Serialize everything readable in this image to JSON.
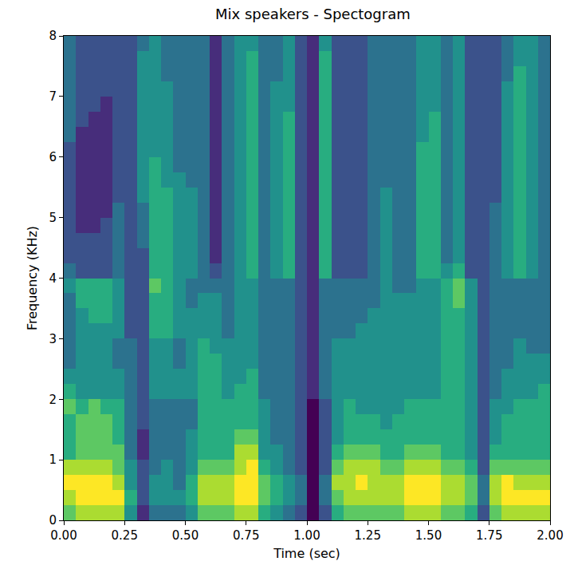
{
  "chart_data": {
    "type": "heatmap",
    "title": "Mix speakers - Spectogram",
    "x_label": "Time (sec)",
    "y_label": "Frequency (KHz)",
    "color": "Viridis",
    "grid": false,
    "xlim": [
      0,
      2
    ],
    "ylim": [
      0,
      8
    ],
    "xticks": [
      {
        "value": 0,
        "label": "0.00"
      },
      0.25,
      {
        "value": 0.5,
        "label": "0.50"
      },
      0.75,
      {
        "value": 1,
        "label": "1.00"
      },
      1.25,
      {
        "value": 1.5,
        "label": "1.50"
      },
      1.75,
      {
        "value": 2,
        "label": "2.00"
      }
    ],
    "yticks": [
      0,
      1,
      2,
      3,
      4,
      5,
      6,
      7,
      8
    ],
    "x": [
      0.025,
      0.075,
      0.125,
      0.175,
      0.225,
      0.275,
      0.325,
      0.375,
      0.425,
      0.475,
      0.525,
      0.575,
      0.625,
      0.675,
      0.725,
      0.775,
      0.825,
      0.875,
      0.925,
      0.975,
      1.025,
      1.075,
      1.125,
      1.175,
      1.225,
      1.275,
      1.325,
      1.375,
      1.425,
      1.475,
      1.525,
      1.575,
      1.625,
      1.675,
      1.725,
      1.775,
      1.825,
      1.875,
      1.925,
      1.975
    ],
    "y": [
      0.125,
      0.375,
      0.625,
      0.875,
      1.125,
      1.375,
      1.625,
      1.875,
      2.125,
      2.375,
      2.625,
      2.875,
      3.125,
      3.375,
      3.625,
      3.875,
      4.125,
      4.375,
      4.625,
      4.875,
      5.125,
      5.375,
      5.625,
      5.875,
      6.125,
      6.375,
      6.625,
      6.875,
      7.125,
      7.375,
      7.625,
      7.875
    ],
    "values": [
      [
        7,
        8,
        8,
        8,
        8,
        5,
        2,
        4,
        4,
        4,
        5,
        7,
        7,
        7,
        8,
        8,
        6,
        5,
        4,
        3,
        1,
        3,
        6,
        7,
        7,
        7,
        7,
        7,
        8,
        8,
        8,
        7,
        7,
        6,
        3,
        7,
        8,
        8,
        8,
        8
      ],
      [
        8,
        9,
        9,
        9,
        9,
        6,
        3,
        5,
        5,
        5,
        6,
        8,
        8,
        8,
        9,
        9,
        7,
        6,
        5,
        4,
        1,
        4,
        7,
        8,
        8,
        8,
        8,
        8,
        9,
        9,
        9,
        8,
        8,
        7,
        4,
        8,
        9,
        9,
        9,
        9
      ],
      [
        9,
        9,
        9,
        9,
        8,
        5,
        3,
        5,
        5,
        4,
        6,
        8,
        8,
        8,
        9,
        9,
        7,
        6,
        5,
        4,
        1,
        4,
        8,
        8,
        9,
        8,
        8,
        8,
        9,
        9,
        9,
        8,
        8,
        7,
        4,
        8,
        9,
        8,
        8,
        8
      ],
      [
        8,
        8,
        8,
        8,
        7,
        5,
        3,
        4,
        5,
        4,
        5,
        7,
        7,
        7,
        8,
        9,
        6,
        5,
        4,
        3,
        1,
        3,
        7,
        8,
        8,
        8,
        7,
        7,
        8,
        8,
        8,
        7,
        7,
        6,
        3,
        7,
        7,
        7,
        7,
        7
      ],
      [
        6,
        7,
        7,
        7,
        7,
        4,
        2,
        4,
        4,
        4,
        5,
        6,
        6,
        6,
        8,
        8,
        5,
        5,
        4,
        3,
        1,
        3,
        6,
        7,
        7,
        7,
        6,
        6,
        7,
        7,
        7,
        6,
        6,
        5,
        3,
        6,
        6,
        6,
        6,
        6
      ],
      [
        6,
        7,
        7,
        7,
        6,
        4,
        2,
        4,
        4,
        4,
        5,
        6,
        6,
        6,
        7,
        7,
        5,
        4,
        4,
        3,
        1,
        3,
        5,
        6,
        6,
        6,
        6,
        6,
        6,
        6,
        6,
        6,
        6,
        5,
        3,
        5,
        6,
        6,
        6,
        6
      ],
      [
        6,
        7,
        7,
        7,
        6,
        4,
        3,
        4,
        4,
        4,
        4,
        6,
        6,
        6,
        6,
        6,
        5,
        4,
        4,
        3,
        1,
        3,
        5,
        6,
        6,
        6,
        5,
        6,
        6,
        6,
        6,
        6,
        6,
        5,
        3,
        5,
        6,
        6,
        6,
        6
      ],
      [
        7,
        6,
        7,
        6,
        6,
        4,
        3,
        4,
        4,
        4,
        4,
        6,
        6,
        6,
        6,
        6,
        5,
        4,
        4,
        3,
        1,
        3,
        5,
        6,
        5,
        5,
        5,
        5,
        6,
        6,
        6,
        6,
        6,
        5,
        3,
        5,
        5,
        6,
        6,
        6
      ],
      [
        6,
        5,
        5,
        5,
        5,
        4,
        3,
        5,
        5,
        5,
        5,
        6,
        6,
        5,
        6,
        6,
        4,
        4,
        4,
        3,
        2,
        4,
        5,
        5,
        5,
        5,
        5,
        5,
        5,
        5,
        5,
        6,
        6,
        5,
        3,
        4,
        5,
        5,
        5,
        6
      ],
      [
        5,
        5,
        5,
        5,
        5,
        4,
        3,
        5,
        5,
        5,
        5,
        6,
        6,
        5,
        5,
        6,
        4,
        4,
        4,
        3,
        2,
        4,
        5,
        5,
        5,
        5,
        5,
        5,
        5,
        5,
        5,
        6,
        6,
        5,
        3,
        4,
        5,
        5,
        5,
        5
      ],
      [
        4,
        5,
        5,
        5,
        4,
        4,
        3,
        5,
        5,
        4,
        5,
        6,
        6,
        5,
        5,
        5,
        4,
        4,
        4,
        3,
        2,
        4,
        5,
        5,
        5,
        5,
        5,
        5,
        5,
        5,
        5,
        6,
        6,
        5,
        3,
        4,
        4,
        5,
        5,
        5
      ],
      [
        4,
        5,
        5,
        5,
        4,
        4,
        3,
        5,
        5,
        4,
        5,
        6,
        5,
        5,
        5,
        5,
        4,
        4,
        4,
        3,
        2,
        4,
        5,
        5,
        5,
        5,
        5,
        5,
        5,
        5,
        5,
        6,
        6,
        5,
        3,
        4,
        4,
        5,
        4,
        4
      ],
      [
        4,
        5,
        5,
        5,
        5,
        3,
        3,
        6,
        6,
        5,
        5,
        5,
        5,
        4,
        5,
        5,
        4,
        4,
        4,
        3,
        2,
        4,
        4,
        4,
        5,
        5,
        5,
        5,
        5,
        5,
        5,
        6,
        6,
        5,
        3,
        4,
        4,
        4,
        4,
        4
      ],
      [
        4,
        5,
        6,
        6,
        5,
        3,
        3,
        6,
        6,
        5,
        5,
        5,
        5,
        4,
        5,
        5,
        4,
        4,
        4,
        3,
        2,
        4,
        4,
        4,
        4,
        5,
        5,
        5,
        5,
        5,
        5,
        6,
        6,
        5,
        3,
        4,
        4,
        4,
        4,
        4
      ],
      [
        4,
        6,
        6,
        6,
        5,
        3,
        3,
        6,
        6,
        5,
        4,
        5,
        5,
        4,
        5,
        5,
        4,
        4,
        4,
        3,
        2,
        4,
        4,
        4,
        4,
        4,
        5,
        5,
        5,
        5,
        5,
        6,
        7,
        5,
        3,
        4,
        4,
        4,
        4,
        4
      ],
      [
        5,
        6,
        6,
        6,
        5,
        3,
        3,
        7,
        6,
        5,
        4,
        4,
        4,
        4,
        5,
        5,
        4,
        4,
        4,
        3,
        2,
        4,
        4,
        4,
        4,
        4,
        5,
        4,
        4,
        5,
        5,
        6,
        7,
        5,
        3,
        4,
        4,
        4,
        4,
        4
      ],
      [
        4,
        3,
        3,
        3,
        4,
        3,
        3,
        6,
        6,
        5,
        5,
        4,
        3,
        4,
        5,
        6,
        4,
        5,
        6,
        3,
        2,
        6,
        3,
        3,
        3,
        4,
        5,
        4,
        4,
        6,
        6,
        5,
        6,
        3,
        3,
        4,
        5,
        6,
        5,
        4
      ],
      [
        3,
        3,
        3,
        3,
        4,
        3,
        3,
        6,
        6,
        5,
        5,
        4,
        2,
        4,
        5,
        6,
        4,
        5,
        6,
        3,
        2,
        6,
        3,
        3,
        3,
        4,
        5,
        4,
        4,
        6,
        6,
        4,
        5,
        3,
        3,
        4,
        5,
        6,
        5,
        4
      ],
      [
        3,
        3,
        3,
        3,
        4,
        3,
        4,
        6,
        6,
        5,
        5,
        4,
        2,
        4,
        5,
        6,
        4,
        5,
        6,
        3,
        2,
        6,
        3,
        3,
        3,
        4,
        5,
        4,
        4,
        6,
        6,
        4,
        5,
        3,
        3,
        4,
        5,
        6,
        5,
        4
      ],
      [
        3,
        2,
        2,
        3,
        4,
        3,
        4,
        6,
        6,
        5,
        5,
        4,
        2,
        4,
        5,
        6,
        4,
        5,
        6,
        3,
        2,
        6,
        3,
        3,
        3,
        4,
        5,
        4,
        4,
        6,
        6,
        4,
        5,
        3,
        3,
        4,
        5,
        6,
        5,
        4
      ],
      [
        3,
        2,
        2,
        2,
        4,
        3,
        4,
        6,
        6,
        5,
        5,
        4,
        2,
        4,
        5,
        6,
        4,
        5,
        6,
        3,
        2,
        6,
        3,
        3,
        3,
        4,
        5,
        4,
        4,
        6,
        6,
        4,
        5,
        3,
        3,
        4,
        5,
        6,
        5,
        4
      ],
      [
        3,
        2,
        2,
        2,
        3,
        3,
        5,
        6,
        6,
        5,
        5,
        4,
        2,
        4,
        5,
        6,
        4,
        5,
        6,
        3,
        2,
        6,
        3,
        3,
        3,
        4,
        5,
        4,
        4,
        6,
        6,
        4,
        5,
        3,
        3,
        3,
        5,
        6,
        5,
        4
      ],
      [
        3,
        2,
        2,
        2,
        3,
        3,
        5,
        6,
        5,
        5,
        4,
        4,
        2,
        4,
        5,
        6,
        4,
        5,
        6,
        3,
        2,
        6,
        3,
        3,
        3,
        4,
        4,
        4,
        4,
        6,
        6,
        4,
        5,
        3,
        3,
        3,
        5,
        6,
        5,
        4
      ],
      [
        3,
        2,
        2,
        2,
        3,
        3,
        5,
        6,
        5,
        4,
        4,
        4,
        2,
        4,
        5,
        6,
        4,
        5,
        6,
        3,
        2,
        6,
        3,
        3,
        3,
        4,
        4,
        4,
        4,
        6,
        6,
        4,
        5,
        3,
        3,
        3,
        5,
        6,
        5,
        4
      ],
      [
        3,
        2,
        2,
        2,
        3,
        3,
        5,
        5,
        5,
        4,
        4,
        4,
        2,
        4,
        5,
        6,
        4,
        5,
        6,
        3,
        2,
        6,
        3,
        3,
        3,
        4,
        4,
        4,
        4,
        6,
        6,
        4,
        5,
        3,
        3,
        3,
        5,
        6,
        5,
        4
      ],
      [
        4,
        2,
        2,
        2,
        3,
        3,
        5,
        5,
        5,
        4,
        4,
        4,
        2,
        4,
        5,
        6,
        4,
        5,
        6,
        3,
        2,
        6,
        3,
        3,
        3,
        4,
        4,
        4,
        4,
        5,
        6,
        4,
        5,
        3,
        3,
        3,
        5,
        6,
        5,
        4
      ],
      [
        4,
        3,
        2,
        2,
        3,
        3,
        5,
        5,
        5,
        4,
        4,
        4,
        2,
        4,
        5,
        6,
        4,
        5,
        6,
        3,
        2,
        6,
        3,
        3,
        3,
        4,
        4,
        4,
        4,
        5,
        6,
        4,
        5,
        3,
        3,
        3,
        5,
        6,
        5,
        4
      ],
      [
        4,
        3,
        3,
        2,
        3,
        3,
        5,
        5,
        5,
        4,
        4,
        4,
        2,
        4,
        5,
        6,
        4,
        5,
        5,
        3,
        2,
        6,
        3,
        3,
        3,
        4,
        4,
        4,
        4,
        5,
        5,
        4,
        5,
        3,
        3,
        3,
        5,
        6,
        5,
        4
      ],
      [
        4,
        3,
        3,
        3,
        3,
        3,
        5,
        5,
        5,
        4,
        4,
        4,
        2,
        4,
        5,
        6,
        4,
        5,
        5,
        3,
        2,
        6,
        3,
        3,
        3,
        4,
        4,
        4,
        4,
        5,
        5,
        4,
        5,
        3,
        3,
        3,
        5,
        6,
        5,
        4
      ],
      [
        4,
        3,
        3,
        3,
        3,
        3,
        5,
        5,
        4,
        4,
        4,
        4,
        2,
        4,
        5,
        6,
        4,
        4,
        5,
        3,
        2,
        6,
        3,
        3,
        3,
        4,
        4,
        4,
        4,
        5,
        5,
        4,
        5,
        3,
        3,
        3,
        4,
        6,
        5,
        4
      ],
      [
        4,
        3,
        3,
        3,
        3,
        3,
        5,
        5,
        4,
        4,
        4,
        4,
        2,
        4,
        5,
        6,
        4,
        4,
        5,
        3,
        2,
        6,
        3,
        3,
        3,
        4,
        4,
        4,
        4,
        5,
        5,
        4,
        5,
        3,
        3,
        3,
        4,
        5,
        5,
        4
      ],
      [
        4,
        3,
        3,
        3,
        3,
        3,
        4,
        5,
        4,
        4,
        4,
        4,
        2,
        4,
        5,
        5,
        4,
        4,
        5,
        3,
        2,
        5,
        3,
        3,
        3,
        4,
        4,
        4,
        4,
        5,
        5,
        4,
        5,
        3,
        3,
        3,
        4,
        5,
        5,
        4
      ]
    ]
  }
}
